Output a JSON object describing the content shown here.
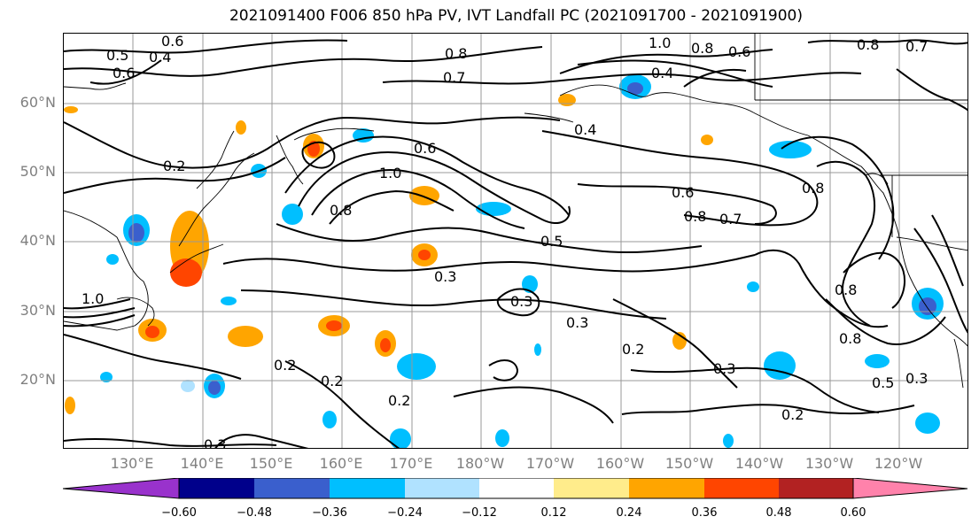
{
  "title": "2021091400 F006 850 hPa PV, IVT Landfall PC (2021091700 - 2021091900)",
  "lat_labels": [
    "60°N",
    "50°N",
    "40°N",
    "30°N",
    "20°N"
  ],
  "lon_labels": [
    "130°E",
    "140°E",
    "150°E",
    "160°E",
    "170°E",
    "180°W",
    "170°W",
    "160°W",
    "150°W",
    "140°W",
    "130°W",
    "120°W"
  ],
  "colorbar": {
    "ticks": [
      "−0.60",
      "−0.48",
      "−0.36",
      "−0.24",
      "−0.12",
      "0.12",
      "0.24",
      "0.36",
      "0.48",
      "0.60"
    ],
    "colors": [
      "#9932cc",
      "#00008b",
      "#3a5fcd",
      "#00bfff",
      "#b0e2ff",
      "#ffffff",
      "#ffec8b",
      "#ffa500",
      "#ff4500",
      "#b22222",
      "#ff82ab"
    ]
  },
  "contour_labels": [
    "0.6",
    "0.5",
    "0.4",
    "0.6",
    "0.8",
    "0.7",
    "1.0",
    "0.8",
    "0.6",
    "0.4",
    "0.8",
    "0.7",
    "0.4",
    "0.2",
    "0.6",
    "1.0",
    "0.8",
    "0.6",
    "0.8",
    "0.7",
    "0.5",
    "0.3",
    "0.3",
    "0.3",
    "0.2",
    "0.3",
    "0.2",
    "0.2",
    "0.2",
    "0.2",
    "0.3",
    "0.8",
    "0.8",
    "0.8",
    "0.5",
    "0.3",
    "1.0"
  ]
}
